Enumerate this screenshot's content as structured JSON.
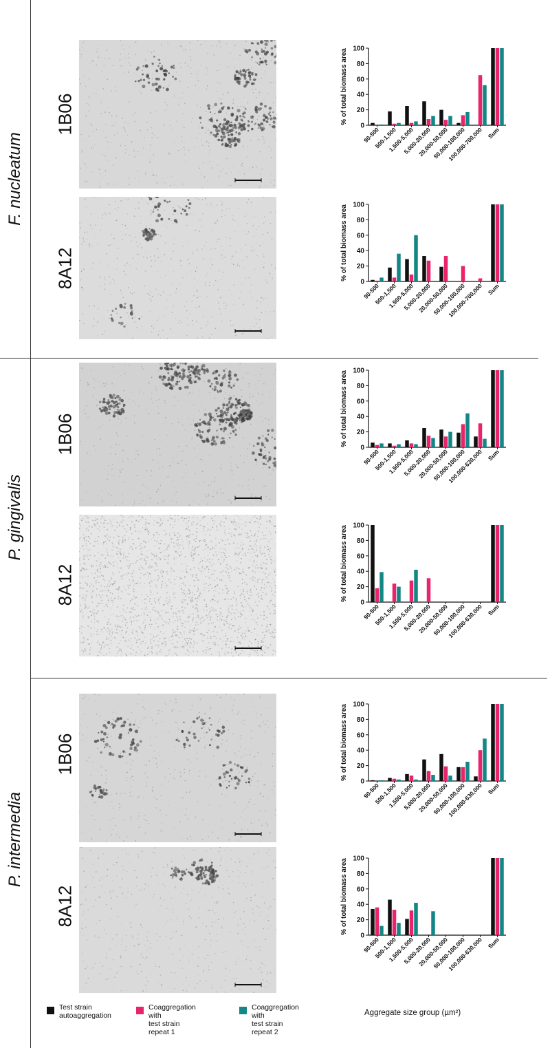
{
  "colors": {
    "autoaggregation": "#111111",
    "repeat1": "#e8246b",
    "repeat2": "#138785"
  },
  "legend": [
    {
      "label": "Test strain\nautoaggregation",
      "color": "#111111"
    },
    {
      "label": "Coaggregation with\ntest strain repeat 1",
      "color": "#e8246b"
    },
    {
      "label": "Coaggregation with\ntest strain repeat 2",
      "color": "#138785"
    }
  ],
  "x_axis_title": "Aggregate size group (µm²)",
  "species": [
    "F. nucleatum",
    "P. gingivalis",
    "P. intermedia"
  ],
  "strains": [
    "1B06",
    "8A12",
    "1B06",
    "8A12",
    "1B06",
    "8A12"
  ],
  "chart_data": [
    {
      "type": "bar",
      "ylabel": "% of total biomass area",
      "ylim": [
        0,
        100
      ],
      "yticks": [
        0,
        20,
        40,
        60,
        80,
        100
      ],
      "categories": [
        "90-500",
        "500-1,500",
        "1,500-5,000",
        "5,000-20,000",
        "20,000-50,000",
        "50,000-100,000",
        "100,000-700,000",
        "Sum"
      ],
      "series": [
        {
          "values": [
            3,
            18,
            25,
            31,
            20,
            3,
            0,
            100
          ]
        },
        {
          "values": [
            0,
            2,
            3,
            8,
            7,
            13,
            65,
            100
          ]
        },
        {
          "values": [
            1,
            3,
            5,
            12,
            12,
            17,
            52,
            100
          ]
        }
      ]
    },
    {
      "type": "bar",
      "ylabel": "% of total biomass area",
      "ylim": [
        0,
        100
      ],
      "yticks": [
        0,
        20,
        40,
        60,
        80,
        100
      ],
      "categories": [
        "90-500",
        "500-1,500",
        "1,500-5,000",
        "5,000-20,000",
        "20,000-50,000",
        "50,000-100,000",
        "100,000-700,000",
        "Sum"
      ],
      "series": [
        {
          "values": [
            2,
            18,
            29,
            33,
            19,
            0,
            0,
            100
          ]
        },
        {
          "values": [
            1,
            5,
            9,
            27,
            33,
            20,
            4,
            100
          ]
        },
        {
          "values": [
            5,
            36,
            60,
            0,
            0,
            0,
            0,
            100
          ]
        }
      ]
    },
    {
      "type": "bar",
      "ylabel": "% of total biomass area",
      "ylim": [
        0,
        100
      ],
      "yticks": [
        0,
        20,
        40,
        60,
        80,
        100
      ],
      "categories": [
        "90-500",
        "500-1,500",
        "1,500-5,000",
        "5,000-20,000",
        "20,000-50,000",
        "50,000-100,000",
        "100,000-630,000",
        "Sum"
      ],
      "series": [
        {
          "values": [
            6,
            5,
            9,
            25,
            23,
            19,
            14,
            100
          ]
        },
        {
          "values": [
            3,
            2,
            5,
            15,
            14,
            30,
            31,
            100
          ]
        },
        {
          "values": [
            5,
            4,
            4,
            12,
            20,
            44,
            11,
            100
          ]
        }
      ]
    },
    {
      "type": "bar",
      "ylabel": "% of total biomass area",
      "ylim": [
        0,
        100
      ],
      "yticks": [
        0,
        20,
        40,
        60,
        80,
        100
      ],
      "categories": [
        "90-500",
        "500-1,500",
        "1,500-5,000",
        "5,000-20,000",
        "20,000-50,000",
        "50,000-100,000",
        "100,000-630,000",
        "Sum"
      ],
      "series": [
        {
          "values": [
            100,
            0,
            0,
            0,
            0,
            0,
            0,
            100
          ]
        },
        {
          "values": [
            18,
            24,
            28,
            31,
            0,
            0,
            0,
            100
          ]
        },
        {
          "values": [
            39,
            20,
            42,
            0,
            0,
            0,
            0,
            100
          ]
        }
      ]
    },
    {
      "type": "bar",
      "ylabel": "% of total biomass area",
      "ylim": [
        0,
        100
      ],
      "yticks": [
        0,
        20,
        40,
        60,
        80,
        100
      ],
      "categories": [
        "90-500",
        "500-1,500",
        "1,500-5,000",
        "5,000-20,000",
        "20,000-50,000",
        "50,000-100,000",
        "100,000-630,000",
        "Sum"
      ],
      "series": [
        {
          "values": [
            1,
            4,
            9,
            28,
            35,
            18,
            6,
            100
          ]
        },
        {
          "values": [
            0,
            3,
            7,
            13,
            19,
            18,
            40,
            100
          ]
        },
        {
          "values": [
            1,
            2,
            2,
            8,
            7,
            25,
            55,
            100
          ]
        }
      ]
    },
    {
      "type": "bar",
      "ylabel": "% of total biomass area",
      "ylim": [
        0,
        100
      ],
      "yticks": [
        0,
        20,
        40,
        60,
        80,
        100
      ],
      "categories": [
        "90-500",
        "500-1,500",
        "1,500-5,000",
        "5,000-20,000",
        "20,000-50,000",
        "50,000-100,000",
        "100,000-630,000",
        "Sum"
      ],
      "series": [
        {
          "values": [
            34,
            46,
            21,
            0,
            0,
            0,
            0,
            100
          ]
        },
        {
          "values": [
            36,
            33,
            32,
            0,
            0,
            0,
            0,
            100
          ]
        },
        {
          "values": [
            12,
            16,
            42,
            31,
            0,
            0,
            0,
            100
          ]
        }
      ]
    }
  ]
}
